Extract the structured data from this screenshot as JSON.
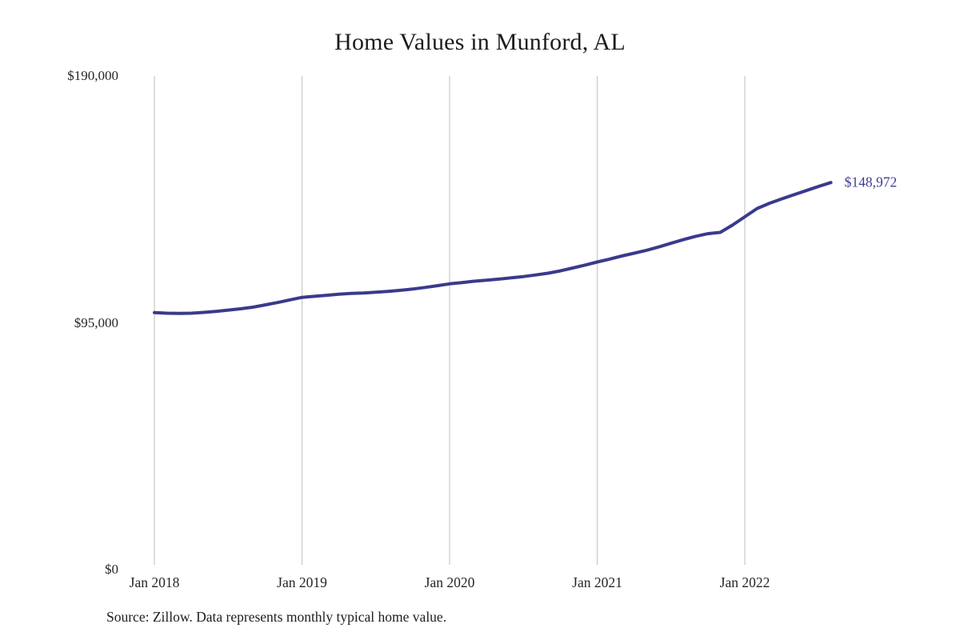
{
  "page": {
    "background": "#ffffff"
  },
  "chart_data": {
    "type": "line",
    "title": "Home Values in Munford, AL",
    "x_tick_labels": [
      "Jan 2018",
      "Jan 2019",
      "Jan 2020",
      "Jan 2021",
      "Jan 2022"
    ],
    "x_tick_month_indices": [
      0,
      12,
      24,
      36,
      48
    ],
    "y_tick_labels": [
      "$0",
      "$95,000",
      "$190,000"
    ],
    "y_tick_values": [
      0,
      95000,
      190000
    ],
    "ylim": [
      0,
      190000
    ],
    "grid": "vertical-only",
    "legend": "none",
    "line_color": "#3a3a8c",
    "gridline_color": "#c9c9c9",
    "end_label": "$148,972",
    "end_label_color": "#3e3e96",
    "categories": [
      "Jan 2018",
      "Feb 2018",
      "Mar 2018",
      "Apr 2018",
      "May 2018",
      "Jun 2018",
      "Jul 2018",
      "Aug 2018",
      "Sep 2018",
      "Oct 2018",
      "Nov 2018",
      "Dec 2018",
      "Jan 2019",
      "Feb 2019",
      "Mar 2019",
      "Apr 2019",
      "May 2019",
      "Jun 2019",
      "Jul 2019",
      "Aug 2019",
      "Sep 2019",
      "Oct 2019",
      "Nov 2019",
      "Dec 2019",
      "Jan 2020",
      "Feb 2020",
      "Mar 2020",
      "Apr 2020",
      "May 2020",
      "Jun 2020",
      "Jul 2020",
      "Aug 2020",
      "Sep 2020",
      "Oct 2020",
      "Nov 2020",
      "Dec 2020",
      "Jan 2021",
      "Feb 2021",
      "Mar 2021",
      "Apr 2021",
      "May 2021",
      "Jun 2021",
      "Jul 2021",
      "Aug 2021",
      "Sep 2021",
      "Oct 2021",
      "Nov 2021",
      "Dec 2021",
      "Jan 2022",
      "Feb 2022",
      "Mar 2022",
      "Apr 2022",
      "May 2022",
      "Jun 2022",
      "Jul 2022",
      "Aug 2022"
    ],
    "values": [
      98900,
      98700,
      98600,
      98700,
      99000,
      99400,
      99900,
      100400,
      101000,
      101900,
      102800,
      103800,
      104800,
      105200,
      105600,
      106000,
      106300,
      106500,
      106800,
      107100,
      107500,
      108000,
      108600,
      109300,
      110000,
      110500,
      111000,
      111400,
      111800,
      112300,
      112800,
      113400,
      114100,
      115000,
      116100,
      117200,
      118400,
      119500,
      120700,
      121800,
      122900,
      124200,
      125600,
      127000,
      128300,
      129300,
      129800,
      132600,
      135800,
      139000,
      141000,
      142700,
      144300,
      145900,
      147500,
      148972
    ]
  },
  "source_note": "Source: Zillow. Data represents monthly typical home value."
}
